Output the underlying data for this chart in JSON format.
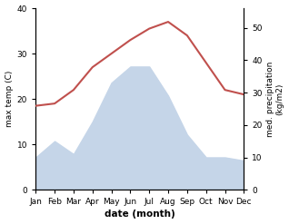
{
  "months": [
    "Jan",
    "Feb",
    "Mar",
    "Apr",
    "May",
    "Jun",
    "Jul",
    "Aug",
    "Sep",
    "Oct",
    "Nov",
    "Dec"
  ],
  "month_indices": [
    0,
    1,
    2,
    3,
    4,
    5,
    6,
    7,
    8,
    9,
    10,
    11
  ],
  "temperature": [
    18.5,
    19,
    22,
    27,
    30,
    33,
    35.5,
    37,
    34,
    28,
    22,
    21
  ],
  "precipitation": [
    10,
    15,
    11,
    21,
    33,
    38,
    38,
    29,
    17,
    10,
    10,
    9
  ],
  "temp_color": "#c0504d",
  "precip_fill_color": "#c5d5e8",
  "temp_ylim": [
    0,
    40
  ],
  "precip_ylim": [
    0,
    56
  ],
  "precip_yticks": [
    0,
    10,
    20,
    30,
    40,
    50
  ],
  "temp_yticks": [
    0,
    10,
    20,
    30,
    40
  ],
  "xlabel": "date (month)",
  "ylabel_left": "max temp (C)",
  "ylabel_right": "med. precipitation\n(kg/m2)",
  "figsize": [
    3.18,
    2.47
  ],
  "dpi": 100
}
